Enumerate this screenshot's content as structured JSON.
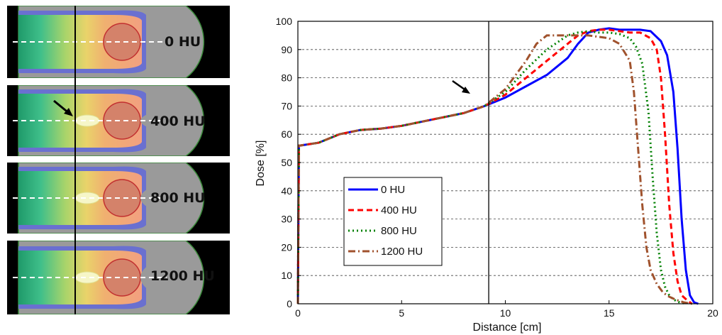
{
  "panels": [
    {
      "label": "0 HU",
      "hu": 0
    },
    {
      "label": "400 HU",
      "hu": 400
    },
    {
      "label": "800 HU",
      "hu": 800
    },
    {
      "label": "1200 HU",
      "hu": 1200
    }
  ],
  "chart_data": {
    "type": "line",
    "xlabel": "Distance [cm]",
    "ylabel": "Dose [%]",
    "xlim": [
      0,
      20
    ],
    "ylim": [
      0,
      100
    ],
    "xticks": [
      0,
      5,
      10,
      15,
      20
    ],
    "yticks": [
      0,
      10,
      20,
      30,
      40,
      50,
      60,
      70,
      80,
      90,
      100
    ],
    "grid": "horizontal dashed",
    "legend_position": "center-left",
    "marker_line_x": 9.2,
    "series": [
      {
        "name": "0 HU",
        "color": "#0000ff",
        "dash": "solid",
        "x": [
          0,
          0.05,
          0.1,
          1,
          2,
          3,
          4,
          5,
          6,
          7,
          8,
          9,
          10,
          11,
          12,
          13,
          13.5,
          14,
          14.5,
          15,
          15.5,
          16,
          16.5,
          17,
          17.5,
          17.8,
          18.1,
          18.3,
          18.5,
          18.7,
          18.9,
          19.1,
          19.3
        ],
        "y": [
          0,
          56,
          56,
          57,
          60,
          61.5,
          62,
          63,
          64.5,
          66,
          67.5,
          70,
          73,
          77,
          81,
          87,
          92,
          96,
          97,
          97.5,
          97,
          97,
          97,
          96.5,
          93,
          88,
          75,
          55,
          30,
          12,
          3,
          0.5,
          0
        ]
      },
      {
        "name": "400 HU",
        "color": "#ff0000",
        "dash": "8,5",
        "x": [
          0,
          0.05,
          0.1,
          1,
          2,
          3,
          4,
          5,
          6,
          7,
          8,
          9,
          10,
          11,
          12,
          13,
          13.5,
          14,
          14.5,
          15,
          15.5,
          16,
          16.5,
          17,
          17.3,
          17.5,
          17.7,
          17.9,
          18.1,
          18.3,
          18.5,
          18.8,
          19.0
        ],
        "y": [
          0,
          56,
          56,
          57,
          60,
          61.5,
          62,
          63,
          64.5,
          66,
          67.5,
          70,
          74,
          80,
          86,
          92,
          95,
          96.5,
          97,
          97,
          96.5,
          96,
          96,
          94,
          90,
          80,
          60,
          35,
          18,
          8,
          3,
          1,
          0
        ]
      },
      {
        "name": "800 HU",
        "color": "#008000",
        "dash": "2,4",
        "x": [
          0,
          0.05,
          0.1,
          1,
          2,
          3,
          4,
          5,
          6,
          7,
          8,
          9,
          10,
          11,
          12,
          13,
          13.5,
          14,
          14.5,
          15,
          15.5,
          16,
          16.3,
          16.6,
          16.9,
          17.1,
          17.3,
          17.5,
          17.7,
          17.9,
          18.1,
          18.4,
          18.7
        ],
        "y": [
          0,
          56,
          56,
          57,
          60,
          61.5,
          62,
          63,
          64.5,
          66,
          67.5,
          70,
          75,
          83,
          90,
          95,
          96,
          96.5,
          96,
          96,
          95.5,
          94,
          91,
          85,
          68,
          45,
          25,
          12,
          6,
          3,
          1.5,
          0.5,
          0
        ]
      },
      {
        "name": "1200 HU",
        "color": "#a0522d",
        "dash": "10,4,2,4",
        "x": [
          0,
          0.05,
          0.1,
          1,
          2,
          3,
          4,
          5,
          6,
          7,
          8,
          9,
          10,
          11,
          11.5,
          12,
          12.5,
          13,
          13.5,
          14,
          14.5,
          15,
          15.5,
          16,
          16.2,
          16.4,
          16.6,
          16.8,
          17,
          17.3,
          17.6,
          17.9,
          18.2,
          18.6,
          19.0
        ],
        "y": [
          0,
          56,
          56,
          57,
          60,
          61.5,
          62,
          63,
          64.5,
          66,
          67.5,
          70,
          76,
          86,
          92,
          95,
          95,
          95,
          95,
          95,
          94.5,
          94,
          92,
          86,
          75,
          55,
          35,
          20,
          12,
          7,
          4,
          2.5,
          1.5,
          0.5,
          0
        ]
      }
    ]
  }
}
